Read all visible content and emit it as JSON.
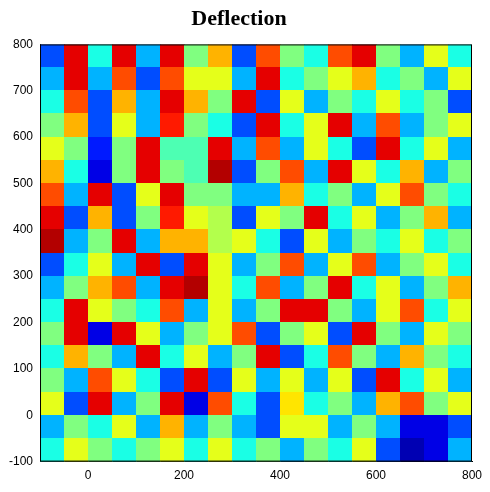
{
  "chart_data": {
    "type": "heatmap",
    "title": "Deflection",
    "xlim": [
      -100,
      800
    ],
    "xticks": [
      0,
      200,
      400,
      600,
      800
    ],
    "ylim": [
      -100,
      800
    ],
    "yticks": [
      -100,
      0,
      100,
      200,
      300,
      400,
      500,
      600,
      700,
      800
    ],
    "grid": false,
    "zlim": [
      0,
      1
    ],
    "x": [
      -75,
      -25,
      25,
      75,
      125,
      175,
      225,
      275,
      325,
      375,
      425,
      475,
      525,
      575,
      625,
      675,
      725,
      775
    ],
    "y": [
      775,
      725,
      675,
      625,
      575,
      525,
      475,
      425,
      375,
      325,
      275,
      225,
      175,
      125,
      75,
      25,
      -25,
      -75
    ],
    "cells": [
      [
        0.2,
        0.9,
        0.4,
        0.9,
        0.3,
        0.9,
        0.5,
        0.7,
        0.2,
        0.8,
        0.5,
        0.4,
        0.8,
        0.9,
        0.5,
        0.3,
        0.6,
        0.4
      ],
      [
        0.3,
        0.9,
        0.3,
        0.8,
        0.2,
        0.8,
        0.6,
        0.6,
        0.3,
        0.9,
        0.4,
        0.5,
        0.6,
        0.7,
        0.4,
        0.5,
        0.3,
        0.6
      ],
      [
        0.4,
        0.8,
        0.2,
        0.7,
        0.3,
        0.9,
        0.7,
        0.5,
        0.9,
        0.2,
        0.6,
        0.3,
        0.5,
        0.4,
        0.6,
        0.4,
        0.5,
        0.2
      ],
      [
        0.5,
        0.7,
        0.2,
        0.6,
        0.3,
        0.85,
        0.5,
        0.4,
        0.2,
        0.9,
        0.4,
        0.6,
        0.9,
        0.3,
        0.8,
        0.3,
        0.5,
        0.6
      ],
      [
        0.6,
        0.5,
        0.15,
        0.5,
        0.9,
        0.45,
        0.45,
        0.9,
        0.3,
        0.8,
        0.3,
        0.6,
        0.4,
        0.2,
        0.9,
        0.4,
        0.6,
        0.3
      ],
      [
        0.7,
        0.4,
        0.1,
        0.5,
        0.9,
        0.5,
        0.45,
        0.95,
        0.2,
        0.5,
        0.8,
        0.3,
        0.9,
        0.6,
        0.4,
        0.7,
        0.3,
        0.5
      ],
      [
        0.8,
        0.3,
        0.9,
        0.2,
        0.6,
        0.9,
        0.5,
        0.5,
        0.3,
        0.3,
        0.7,
        0.4,
        0.5,
        0.3,
        0.6,
        0.8,
        0.5,
        0.4
      ],
      [
        0.9,
        0.2,
        0.7,
        0.2,
        0.5,
        0.85,
        0.6,
        0.55,
        0.2,
        0.6,
        0.5,
        0.9,
        0.4,
        0.6,
        0.3,
        0.5,
        0.7,
        0.3
      ],
      [
        0.95,
        0.3,
        0.5,
        0.9,
        0.3,
        0.7,
        0.7,
        0.55,
        0.6,
        0.4,
        0.2,
        0.6,
        0.3,
        0.5,
        0.4,
        0.6,
        0.4,
        0.5
      ],
      [
        0.2,
        0.4,
        0.6,
        0.3,
        0.9,
        0.2,
        0.9,
        0.6,
        0.3,
        0.5,
        0.8,
        0.3,
        0.6,
        0.8,
        0.3,
        0.5,
        0.6,
        0.4
      ],
      [
        0.3,
        0.5,
        0.7,
        0.8,
        0.3,
        0.9,
        0.95,
        0.6,
        0.4,
        0.8,
        0.3,
        0.5,
        0.9,
        0.4,
        0.6,
        0.3,
        0.5,
        0.7
      ],
      [
        0.4,
        0.9,
        0.6,
        0.5,
        0.4,
        0.8,
        0.3,
        0.6,
        0.3,
        0.5,
        0.9,
        0.9,
        0.5,
        0.3,
        0.6,
        0.8,
        0.4,
        0.6
      ],
      [
        0.5,
        0.9,
        0.1,
        0.9,
        0.6,
        0.3,
        0.5,
        0.6,
        0.8,
        0.2,
        0.5,
        0.6,
        0.2,
        0.9,
        0.5,
        0.3,
        0.6,
        0.5
      ],
      [
        0.4,
        0.7,
        0.5,
        0.3,
        0.9,
        0.4,
        0.6,
        0.3,
        0.5,
        0.9,
        0.2,
        0.4,
        0.8,
        0.5,
        0.3,
        0.7,
        0.5,
        0.4
      ],
      [
        0.5,
        0.3,
        0.8,
        0.6,
        0.4,
        0.2,
        0.9,
        0.2,
        0.6,
        0.3,
        0.6,
        0.3,
        0.6,
        0.2,
        0.9,
        0.4,
        0.6,
        0.3
      ],
      [
        0.6,
        0.2,
        0.9,
        0.3,
        0.5,
        0.9,
        0.1,
        0.8,
        0.4,
        0.2,
        0.65,
        0.4,
        0.5,
        0.3,
        0.7,
        0.8,
        0.5,
        0.6
      ],
      [
        0.3,
        0.5,
        0.4,
        0.6,
        0.3,
        0.7,
        0.3,
        0.5,
        0.3,
        0.2,
        0.6,
        0.6,
        0.3,
        0.5,
        0.3,
        0.1,
        0.1,
        0.2
      ],
      [
        0.4,
        0.6,
        0.5,
        0.4,
        0.5,
        0.6,
        0.4,
        0.6,
        0.4,
        0.5,
        0.3,
        0.5,
        0.4,
        0.6,
        0.2,
        0.05,
        0.1,
        0.3
      ]
    ]
  }
}
